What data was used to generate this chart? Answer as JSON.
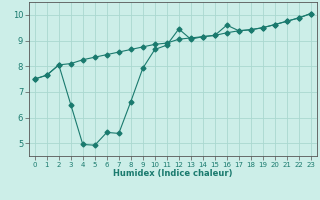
{
  "xlabel": "Humidex (Indice chaleur)",
  "bg_color": "#cceee8",
  "line_color": "#1a7a6e",
  "grid_color": "#aad8d0",
  "spine_color": "#555555",
  "xlim": [
    -0.5,
    23.5
  ],
  "ylim": [
    4.5,
    10.5
  ],
  "xticks": [
    0,
    1,
    2,
    3,
    4,
    5,
    6,
    7,
    8,
    9,
    10,
    11,
    12,
    13,
    14,
    15,
    16,
    17,
    18,
    19,
    20,
    21,
    22,
    23
  ],
  "yticks": [
    5,
    6,
    7,
    8,
    9,
    10
  ],
  "line1_x": [
    0,
    1,
    2,
    3,
    4,
    5,
    6,
    7,
    8,
    9,
    10,
    11,
    12,
    13,
    14,
    15,
    16,
    17,
    18,
    19,
    20,
    21,
    22,
    23
  ],
  "line1_y": [
    7.5,
    7.65,
    8.05,
    8.1,
    8.25,
    8.35,
    8.45,
    8.55,
    8.65,
    8.75,
    8.85,
    8.9,
    9.05,
    9.1,
    9.15,
    9.2,
    9.3,
    9.38,
    9.42,
    9.5,
    9.62,
    9.75,
    9.88,
    10.05
  ],
  "line2_x": [
    0,
    1,
    2,
    3,
    4,
    5,
    6,
    7,
    8,
    9,
    10,
    11,
    12,
    13,
    14,
    15,
    16,
    17,
    18,
    19,
    20,
    21,
    22,
    23
  ],
  "line2_y": [
    7.5,
    7.65,
    8.05,
    6.5,
    4.95,
    4.92,
    5.42,
    5.38,
    6.62,
    7.92,
    8.65,
    8.82,
    9.45,
    9.05,
    9.15,
    9.2,
    9.6,
    9.38,
    9.42,
    9.5,
    9.62,
    9.75,
    9.88,
    10.05
  ],
  "xlabel_fontsize": 6.0,
  "tick_fontsize": 5.0,
  "ytick_fontsize": 6.0
}
